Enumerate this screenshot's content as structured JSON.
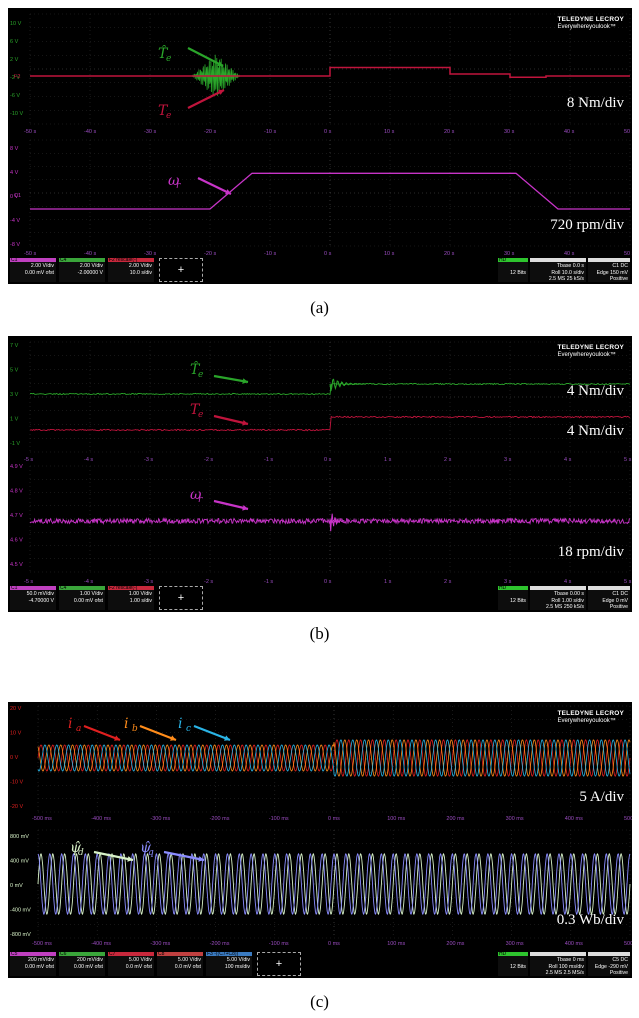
{
  "chart_data": [
    {
      "panel": "(a)",
      "type": "line",
      "brand": {
        "name": "TELEDYNE LECROY",
        "tagline": "Everywhereyoulook™"
      },
      "upper": {
        "yticks": [
          "10 V",
          "6 V",
          "2 V",
          "-2 V",
          "-6 V",
          "-10 V"
        ],
        "xticks": [
          "-50 s",
          "-40 s",
          "-30 s",
          "-20 s",
          "-10 s",
          "0 s",
          "10 s",
          "20 s",
          "30 s",
          "40 s",
          "50 s"
        ],
        "scale_label": "8 Nm/div",
        "series": [
          {
            "name": "T̂e",
            "color": "#2aa52a",
            "x": [
              -50,
              -22,
              -19,
              -17,
              -10,
              0,
              20,
              30,
              35,
              50
            ],
            "y": [
              0,
              0,
              0.5,
              0.2,
              0.05,
              0.05,
              0.05,
              0.05,
              0.05,
              0.05
            ]
          },
          {
            "name": "Te",
            "color": "#c0143c",
            "x": [
              -50,
              -20,
              -10,
              0,
              0,
              20,
              20,
              30,
              30,
              36,
              36,
              50
            ],
            "y": [
              0,
              0,
              0,
              0,
              1.3,
              1.3,
              0.3,
              0.3,
              -0.2,
              -0.2,
              0,
              0
            ]
          }
        ]
      },
      "lower": {
        "yticks": [
          "8 V",
          "4 V",
          "0 V",
          "-4 V",
          "-8 V"
        ],
        "xticks": [
          "-50 s",
          "-40 s",
          "-30 s",
          "-20 s",
          "-10 s",
          "0 s",
          "10 s",
          "20 s",
          "30 s",
          "40 s",
          "50 s"
        ],
        "scale_label": "720 rpm/div",
        "series": [
          {
            "name": "ωr",
            "color": "#c834c8",
            "x": [
              -50,
              -20,
              -13,
              31,
              38,
              50
            ],
            "y": [
              -2,
              -2,
              4.5,
              4.5,
              -2,
              -2
            ]
          }
        ]
      },
      "status": {
        "channels": [
          {
            "id": "C1",
            "line1": "2.00 V/div",
            "line2": "0.00 mV ofst"
          },
          {
            "id": "C4",
            "line1": "2.00 V/div",
            "line2": "-2.00000 V"
          },
          {
            "id": "F2 rescale(-(",
            "line1": "2.00 V/div",
            "line2": "10.0 s/div"
          }
        ],
        "hd": "HD",
        "bits": "12 Bits",
        "tbase": {
          "r1": "Tbase 0.0 s",
          "r2": "Roll 10.0 s/div",
          "r3": "2.5 MS 25 kS/s"
        },
        "trig": {
          "r1": "C1 DC",
          "r2": "Edge 150 mV",
          "r3": "Positive"
        }
      }
    },
    {
      "panel": "(b)",
      "type": "line",
      "brand": {
        "name": "TELEDYNE LECROY",
        "tagline": "Everywhereyoulook™"
      },
      "upper": {
        "yticks": [
          "7 V",
          "5 V",
          "3 V",
          "1 V",
          "-1 V"
        ],
        "xticks": [
          "-5 s",
          "-4 s",
          "-3 s",
          "-2 s",
          "-1 s",
          "0 s",
          "1 s",
          "2 s",
          "3 s",
          "4 s",
          "5 s"
        ],
        "scale_labels": [
          "4 Nm/div",
          "4 Nm/div"
        ],
        "series": [
          {
            "name": "T̂e",
            "color": "#2aa52a",
            "x": [
              -5,
              0,
              0.5,
              5
            ],
            "y": [
              3.2,
              3.2,
              4.2,
              4.2
            ]
          },
          {
            "name": "Te",
            "color": "#c0143c",
            "x": [
              -5,
              0,
              0.5,
              5
            ],
            "y": [
              0.0,
              0.0,
              1.0,
              1.0
            ]
          }
        ]
      },
      "lower": {
        "yticks": [
          "4.9 V",
          "4.8 V",
          "4.7 V",
          "4.6 V",
          "4.5 V"
        ],
        "xticks": [
          "-5 s",
          "-4 s",
          "-3 s",
          "-2 s",
          "-1 s",
          "0 s",
          "1 s",
          "2 s",
          "3 s",
          "4 s",
          "5 s"
        ],
        "scale_label": "18 rpm/div",
        "series": [
          {
            "name": "ωr",
            "color": "#c834c8",
            "x": [
              -5,
              0,
              5
            ],
            "y": [
              4.69,
              4.69,
              4.69
            ]
          }
        ]
      },
      "status": {
        "channels": [
          {
            "id": "C1",
            "line1": "50.0 mV/div",
            "line2": "-4.70000 V"
          },
          {
            "id": "C4",
            "line1": "1.00 V/div",
            "line2": "0.00 mV ofst"
          },
          {
            "id": "F2 rescale(-(",
            "line1": "1.00 V/div",
            "line2": "1.00 s/div"
          }
        ],
        "hd": "HD",
        "bits": "12 Bits",
        "tbase": {
          "r1": "Tbase 0.00 s",
          "r2": "Roll 1.00 s/div",
          "r3": "2.5 MS 250 kS/s"
        },
        "trig": {
          "r1": "C1 DC",
          "r2": "Edge 0 mV",
          "r3": "Positive"
        }
      }
    },
    {
      "panel": "(c)",
      "type": "line",
      "brand": {
        "name": "TELEDYNE LECROY",
        "tagline": "Everywhereyoulook™"
      },
      "upper": {
        "yticks": [
          "20 V",
          "10 V",
          "0 V",
          "-10 V",
          "-20 V"
        ],
        "xticks": [
          "-500 ms",
          "-400 ms",
          "-300 ms",
          "-200 ms",
          "-100 ms",
          "0 ms",
          "100 ms",
          "200 ms",
          "300 ms",
          "400 ms",
          "500 ms"
        ],
        "scale_label": "5 A/div",
        "series": [
          {
            "name": "ia",
            "color": "#e02020",
            "amplitude_before": 5,
            "amplitude_after": 7,
            "frequency_hz": 50
          },
          {
            "name": "ib",
            "color": "#ff8c1a",
            "amplitude_before": 5,
            "amplitude_after": 7,
            "frequency_hz": 50
          },
          {
            "name": "ic",
            "color": "#2ab4e6",
            "amplitude_before": 5,
            "amplitude_after": 7,
            "frequency_hz": 50
          }
        ]
      },
      "lower": {
        "yticks": [
          "800 mV",
          "400 mV",
          "0 mV",
          "-400 mV",
          "-800 mV"
        ],
        "xticks": [
          "-500 ms",
          "-400 ms",
          "-300 ms",
          "-200 ms",
          "-100 ms",
          "0 ms",
          "100 ms",
          "200 ms",
          "300 ms",
          "400 ms",
          "500 ms"
        ],
        "scale_label": "0.3 Wb/div",
        "series": [
          {
            "name": "ψ̂d",
            "color": "#d8f2c8",
            "amplitude": 430,
            "frequency_hz": 50
          },
          {
            "name": "ψ̂q",
            "color": "#8a8cff",
            "amplitude": 430,
            "frequency_hz": 50
          }
        ]
      },
      "status": {
        "channels": [
          {
            "id": "C5",
            "line1": "200 mV/div",
            "line2": "0.00 mV ofst"
          },
          {
            "id": "C6",
            "line1": "200 mV/div",
            "line2": "0.00 mV ofst"
          },
          {
            "id": "C7",
            "line1": "5.00 V/div",
            "line2": "0.0 mV ofst"
          },
          {
            "id": "C8",
            "line1": "5.00 V/div",
            "line2": "0.0 mV ofst"
          },
          {
            "id": "F3 -((C7+C8))",
            "line1": "5.00 V/div",
            "line2": "100 ms/div"
          }
        ],
        "hd": "HD",
        "bits": "12 Bits",
        "tbase": {
          "r1": "Tbase 0 ms",
          "r2": "Roll 100 ms/div",
          "r3": "2.5 MS 2.5 MS/s"
        },
        "trig": {
          "r1": "C5 DC",
          "r2": "Edge -290 mV",
          "r3": "Positive"
        }
      }
    }
  ],
  "captions": [
    "(a)",
    "(b)",
    "(c)"
  ],
  "plus_label": "+"
}
